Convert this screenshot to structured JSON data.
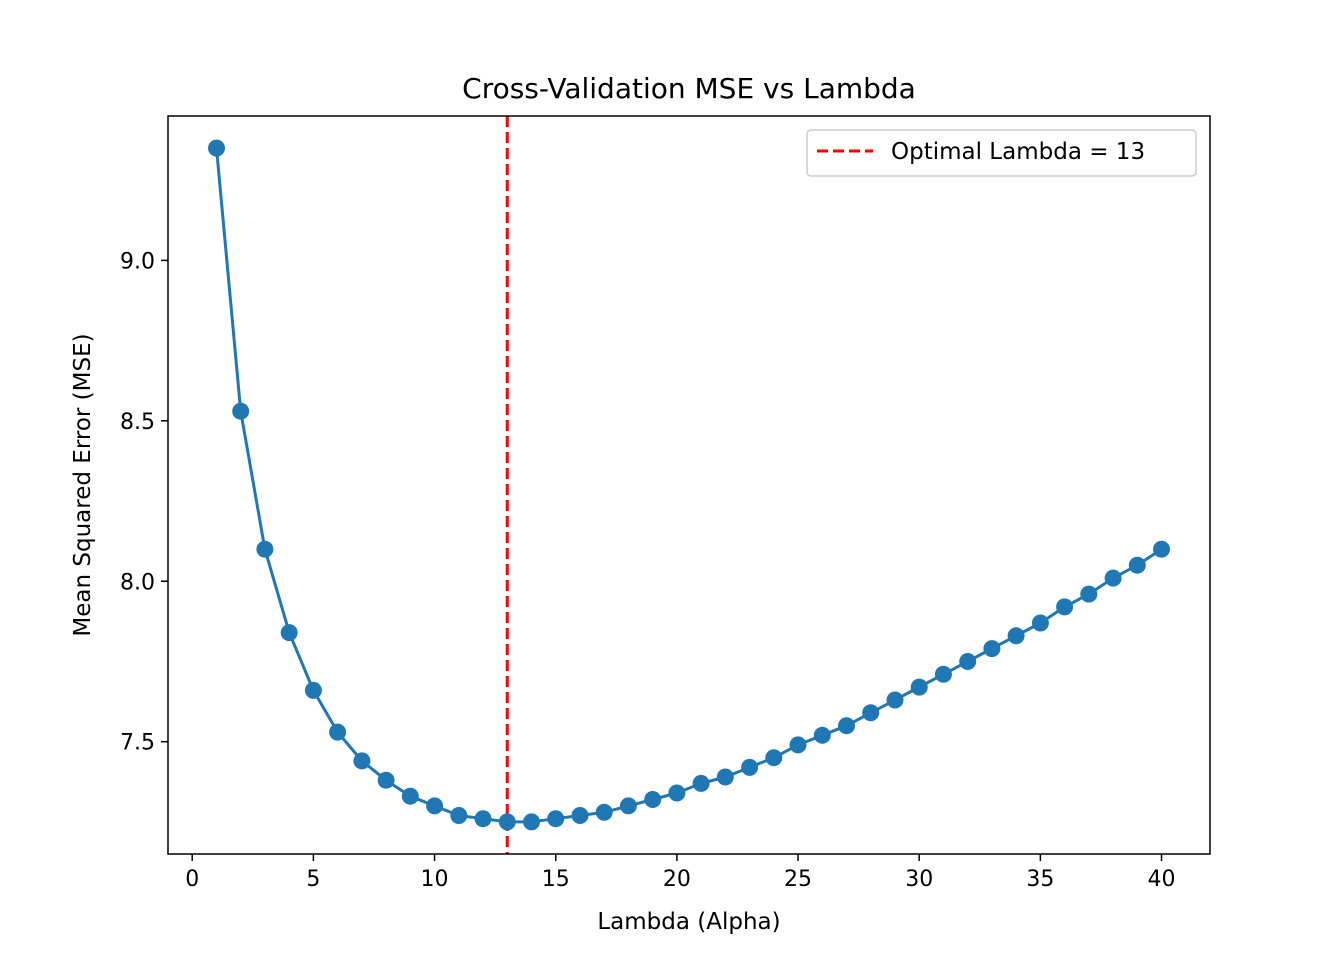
{
  "chart_data": {
    "type": "line",
    "title": "Cross-Validation MSE vs Lambda",
    "xlabel": "Lambda (Alpha)",
    "ylabel": "Mean Squared Error (MSE)",
    "xlim": [
      -1,
      42
    ],
    "ylim": [
      7.15,
      9.45
    ],
    "xticks": [
      0,
      5,
      10,
      15,
      20,
      25,
      30,
      35,
      40
    ],
    "xtick_labels": [
      "0",
      "5",
      "10",
      "15",
      "20",
      "25",
      "30",
      "35",
      "40"
    ],
    "yticks": [
      7.5,
      8.0,
      8.5,
      9.0
    ],
    "ytick_labels": [
      "7.5",
      "8.0",
      "8.5",
      "9.0"
    ],
    "grid": false,
    "legend_position": "top-right",
    "series": [
      {
        "color": "#1f77b4",
        "marker": "circle",
        "x": [
          1,
          2,
          3,
          4,
          5,
          6,
          7,
          8,
          9,
          10,
          11,
          12,
          13,
          14,
          15,
          16,
          17,
          18,
          19,
          20,
          21,
          22,
          23,
          24,
          25,
          26,
          27,
          28,
          29,
          30,
          31,
          32,
          33,
          34,
          35,
          36,
          37,
          38,
          39,
          40
        ],
        "y": [
          9.35,
          8.53,
          8.1,
          7.84,
          7.66,
          7.53,
          7.44,
          7.38,
          7.33,
          7.3,
          7.27,
          7.26,
          7.25,
          7.25,
          7.26,
          7.27,
          7.28,
          7.3,
          7.32,
          7.34,
          7.37,
          7.39,
          7.42,
          7.45,
          7.49,
          7.52,
          7.55,
          7.59,
          7.63,
          7.67,
          7.71,
          7.75,
          7.79,
          7.83,
          7.87,
          7.92,
          7.96,
          8.01,
          8.05,
          8.1
        ]
      }
    ],
    "reference_line": {
      "orientation": "vertical",
      "x": 13,
      "color": "#ff0000",
      "style": "dashed",
      "label": "Optimal Lambda = 13"
    }
  }
}
